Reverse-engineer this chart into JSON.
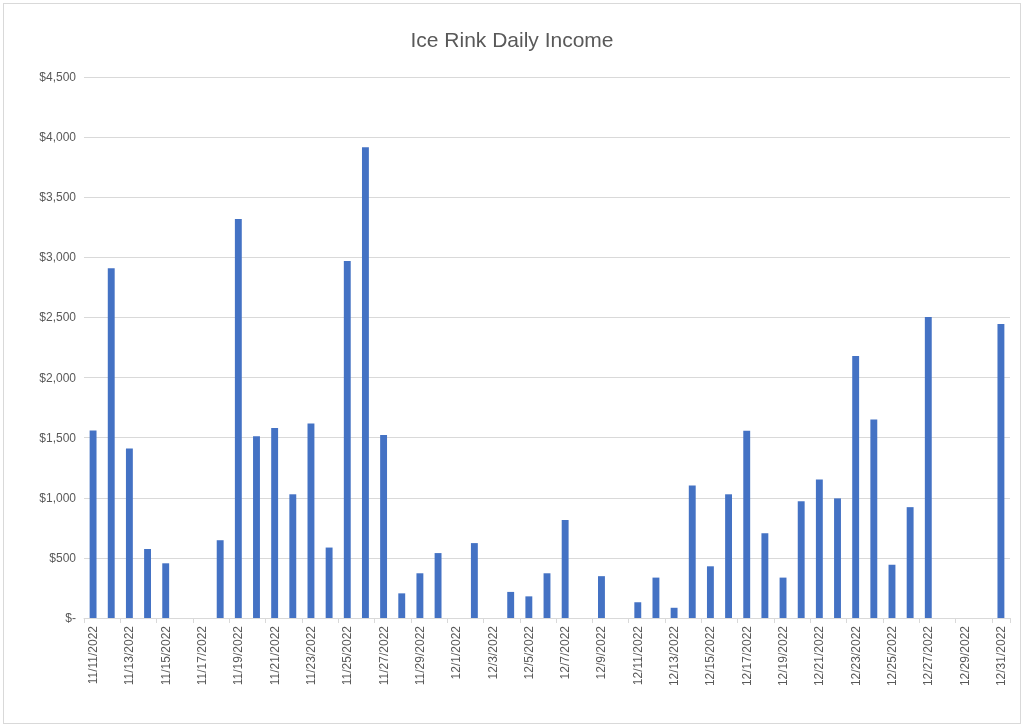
{
  "chart_data": {
    "type": "bar",
    "title": "Ice Rink Daily Income",
    "categories": [
      "11/11/2022",
      null,
      "11/13/2022",
      null,
      "11/15/2022",
      null,
      "11/17/2022",
      null,
      "11/19/2022",
      null,
      "11/21/2022",
      null,
      "11/23/2022",
      null,
      "11/25/2022",
      null,
      "11/27/2022",
      null,
      "11/29/2022",
      null,
      "12/1/2022",
      null,
      "12/3/2022",
      null,
      "12/5/2022",
      null,
      "12/7/2022",
      null,
      "12/9/2022",
      null,
      "12/11/2022",
      null,
      "12/13/2022",
      null,
      "12/15/2022",
      null,
      "12/17/2022",
      null,
      "12/19/2022",
      null,
      "12/21/2022",
      null,
      "12/23/2022",
      null,
      "12/25/2022",
      null,
      "12/27/2022",
      null,
      "12/29/2022",
      null,
      "12/31/2022"
    ],
    "values": [
      1560,
      2910,
      1410,
      574,
      455,
      null,
      null,
      647,
      3318,
      1511,
      1581,
      1029,
      1618,
      586,
      2970,
      3916,
      1523,
      205,
      372,
      540,
      null,
      623,
      null,
      217,
      180,
      372,
      815,
      null,
      348,
      null,
      131,
      336,
      85,
      1102,
      430,
      1029,
      1557,
      705,
      336,
      971,
      1151,
      995,
      2180,
      1651,
      443,
      922,
      2503,
      null,
      null,
      null,
      2445
    ],
    "color": "#4472c4",
    "ylim": [
      0,
      4500
    ],
    "yticks": [
      {
        "value": 0,
        "label": "$-"
      },
      {
        "value": 500,
        "label": "$500"
      },
      {
        "value": 1000,
        "label": "$1,000"
      },
      {
        "value": 1500,
        "label": "$1,500"
      },
      {
        "value": 2000,
        "label": "$2,000"
      },
      {
        "value": 2500,
        "label": "$2,500"
      },
      {
        "value": 3000,
        "label": "$3,000"
      },
      {
        "value": 3500,
        "label": "$3,500"
      },
      {
        "value": 4000,
        "label": "$4,000"
      },
      {
        "value": 4500,
        "label": "$4,500"
      }
    ],
    "grid": "y"
  }
}
